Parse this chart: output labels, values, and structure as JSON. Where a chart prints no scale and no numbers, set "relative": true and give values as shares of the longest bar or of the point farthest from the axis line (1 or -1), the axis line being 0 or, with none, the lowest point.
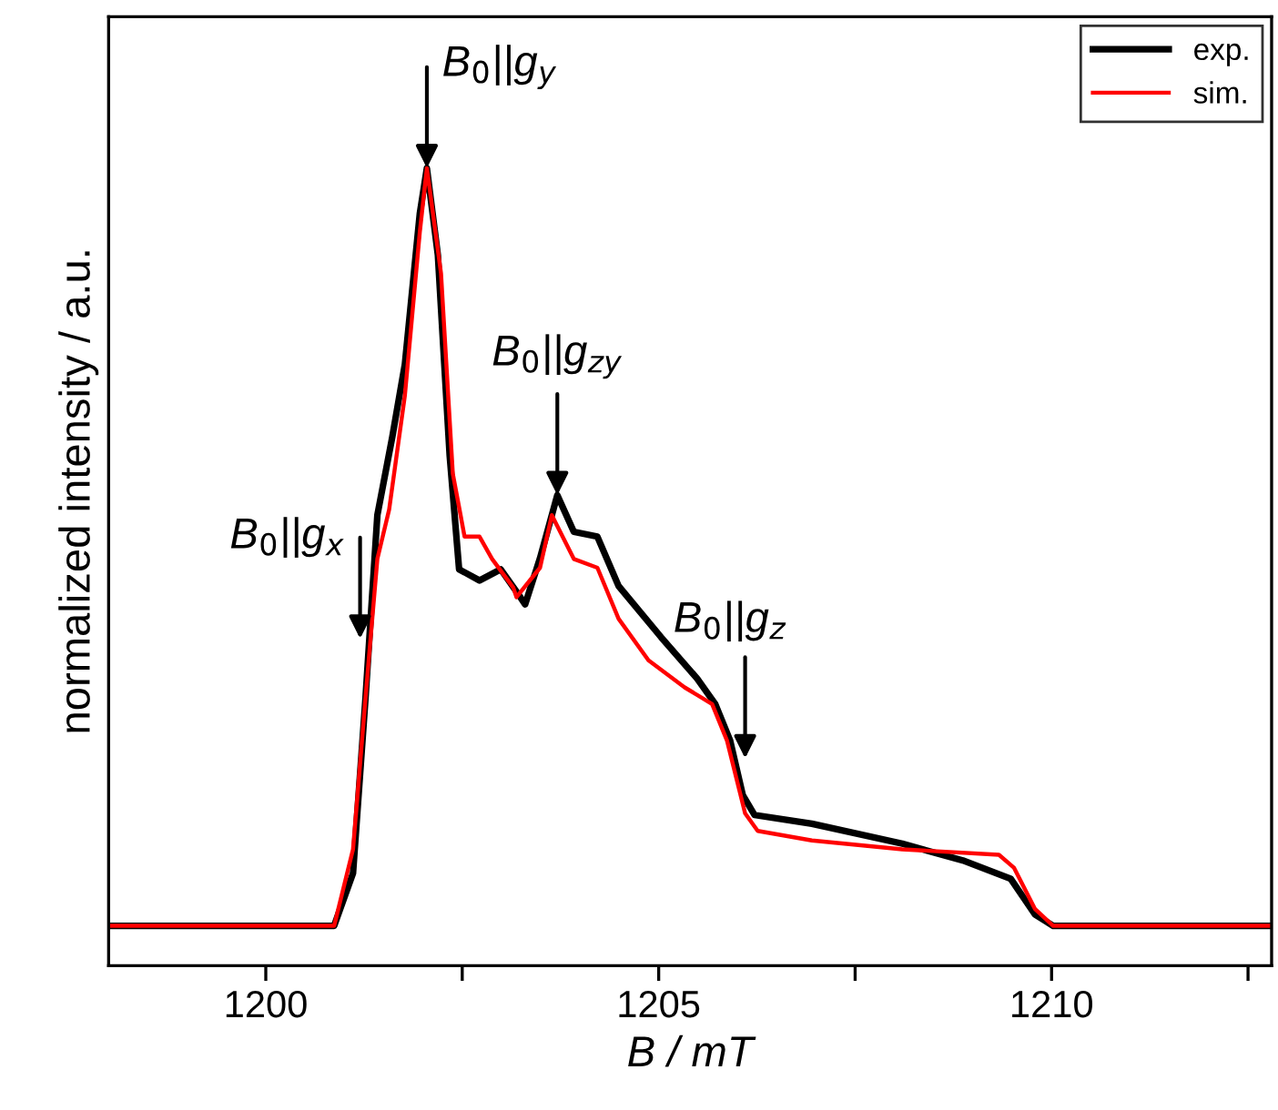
{
  "chart_data": {
    "type": "line",
    "xlabel": "B / mT",
    "ylabel": "normalized intensity / a.u.",
    "relative": true,
    "xlim": [
      1198.0,
      1212.8
    ],
    "xticks": [
      1200,
      {
        "value": 1202.5,
        "label": null
      },
      1205,
      {
        "value": 1207.5,
        "label": null
      },
      1210,
      {
        "value": 1212.5,
        "label": null
      }
    ],
    "tick_labels": "x",
    "grid": false,
    "legend": "top right",
    "marker": "none",
    "line_style": "solid",
    "series": [
      {
        "name": "exp.",
        "color": "#000000",
        "x": [
          1198.0,
          1200.87,
          1201.11,
          1201.27,
          1201.42,
          1201.61,
          1201.77,
          1201.96,
          1202.05,
          1202.19,
          1202.34,
          1202.46,
          1202.72,
          1202.99,
          1203.24,
          1203.3,
          1203.49,
          1203.71,
          1203.92,
          1204.22,
          1204.49,
          1205.03,
          1205.49,
          1205.72,
          1205.91,
          1206.07,
          1206.22,
          1206.95,
          1208.1,
          1208.87,
          1209.48,
          1209.79,
          1210.02,
          1212.8
        ],
        "values": [
          0.05,
          0.05,
          0.116,
          0.337,
          0.565,
          0.663,
          0.754,
          0.943,
          1.0,
          0.891,
          0.64,
          0.497,
          0.483,
          0.497,
          0.462,
          0.453,
          0.511,
          0.59,
          0.544,
          0.538,
          0.476,
          0.412,
          0.36,
          0.328,
          0.282,
          0.214,
          0.189,
          0.178,
          0.153,
          0.132,
          0.109,
          0.064,
          0.05,
          0.05
        ]
      },
      {
        "name": "sim.",
        "color": "#ff0000",
        "x": [
          1198.0,
          1200.87,
          1201.11,
          1201.27,
          1201.42,
          1201.57,
          1201.77,
          1201.96,
          1202.05,
          1202.23,
          1202.38,
          1202.53,
          1202.72,
          1202.88,
          1203.15,
          1203.19,
          1203.49,
          1203.64,
          1203.92,
          1204.22,
          1204.49,
          1204.87,
          1205.33,
          1205.68,
          1205.87,
          1206.1,
          1206.26,
          1206.95,
          1208.1,
          1209.33,
          1209.52,
          1209.79,
          1210.02,
          1212.8
        ],
        "values": [
          0.05,
          0.05,
          0.146,
          0.337,
          0.51,
          0.572,
          0.715,
          0.92,
          1.0,
          0.868,
          0.617,
          0.538,
          0.538,
          0.51,
          0.474,
          0.462,
          0.499,
          0.565,
          0.51,
          0.499,
          0.435,
          0.383,
          0.349,
          0.328,
          0.282,
          0.191,
          0.169,
          0.157,
          0.146,
          0.139,
          0.123,
          0.071,
          0.05,
          0.05
        ]
      }
    ],
    "annotations": [
      {
        "text": "B$_{0}$||g$_{x}$",
        "x": 1201.2,
        "y": 0.41
      },
      {
        "text": "B$_{0}$||g$_{y}$",
        "x": 1202.05,
        "y": 1.0
      },
      {
        "text": "B$_{0}$||g$_{zy}$",
        "x": 1203.71,
        "y": 0.59
      },
      {
        "text": "B$_{0}$||g$_{z}$",
        "x": 1206.1,
        "y": 0.26
      }
    ]
  }
}
